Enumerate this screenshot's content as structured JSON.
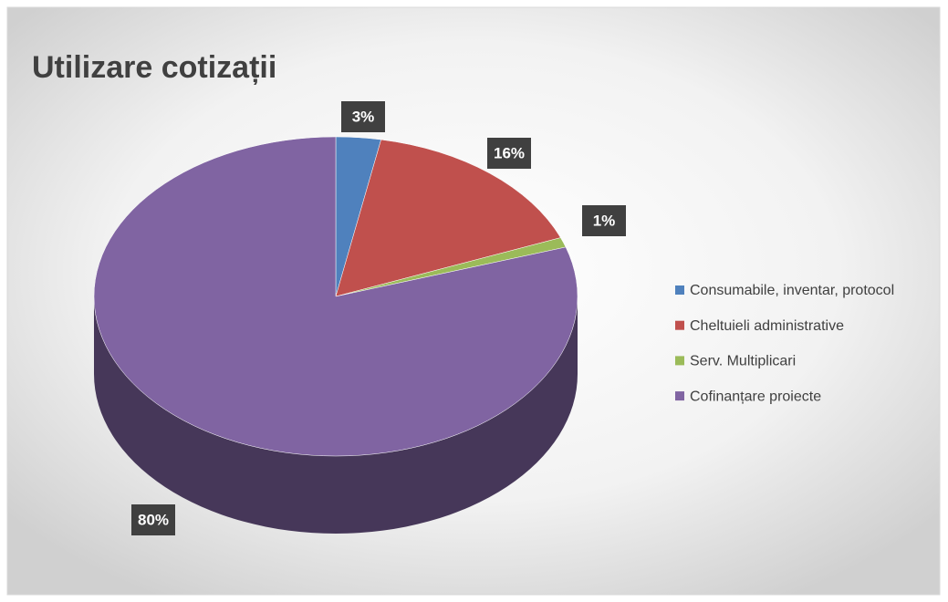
{
  "chart_data": {
    "type": "pie",
    "title": "Utilizare cotizații",
    "categories": [
      "Consumabile, inventar, protocol",
      "Cheltuieli administrative",
      "Serv. Multiplicari",
      "Cofinanțare proiecte"
    ],
    "values": [
      3,
      16,
      1,
      80
    ],
    "value_labels": [
      "3%",
      "16%",
      "1%",
      "80%"
    ],
    "colors": [
      "#4f81bd",
      "#c0504d",
      "#9bbb59",
      "#8064a2"
    ],
    "legend": "right"
  }
}
